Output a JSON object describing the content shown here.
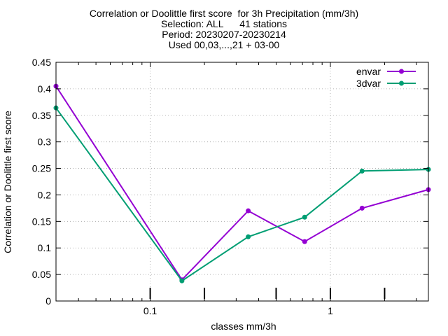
{
  "chart_data": {
    "type": "line",
    "title_lines": [
      "Correlation or Doolittle first score  for 3h Precipitation (mm/3h)",
      "Selection: ALL      41 stations",
      "Period: 20230207-20230214",
      "Used 00,03,...,21 + 03-00"
    ],
    "xlabel": "classes mm/3h",
    "ylabel": "Correlation or Doolittle first score",
    "x_scale": "log",
    "xlim": [
      0.03,
      3.5
    ],
    "ylim": [
      0,
      0.45
    ],
    "y_ticks": [
      0,
      0.05,
      0.1,
      0.15,
      0.2,
      0.25,
      0.3,
      0.35,
      0.4,
      0.45
    ],
    "y_tick_labels": [
      "0",
      "0.05",
      "0.1",
      "0.15",
      "0.2",
      "0.25",
      "0.3",
      "0.35",
      "0.4",
      "0.45"
    ],
    "x_ticks": [
      0.1,
      1
    ],
    "x_tick_labels": [
      "0.1",
      "1"
    ],
    "class_markers": [
      0.1,
      0.2,
      0.5,
      1,
      2
    ],
    "grid": true,
    "legend_position": "top-right",
    "series": [
      {
        "name": "envar",
        "color": "#9400d3",
        "x": [
          0.03,
          0.15,
          0.35,
          0.72,
          1.5,
          3.5
        ],
        "y": [
          0.405,
          0.04,
          0.17,
          0.112,
          0.175,
          0.21
        ]
      },
      {
        "name": "3dvar",
        "color": "#009e73",
        "x": [
          0.03,
          0.15,
          0.35,
          0.72,
          1.5,
          3.5
        ],
        "y": [
          0.364,
          0.038,
          0.121,
          0.158,
          0.245,
          0.248
        ]
      }
    ]
  }
}
